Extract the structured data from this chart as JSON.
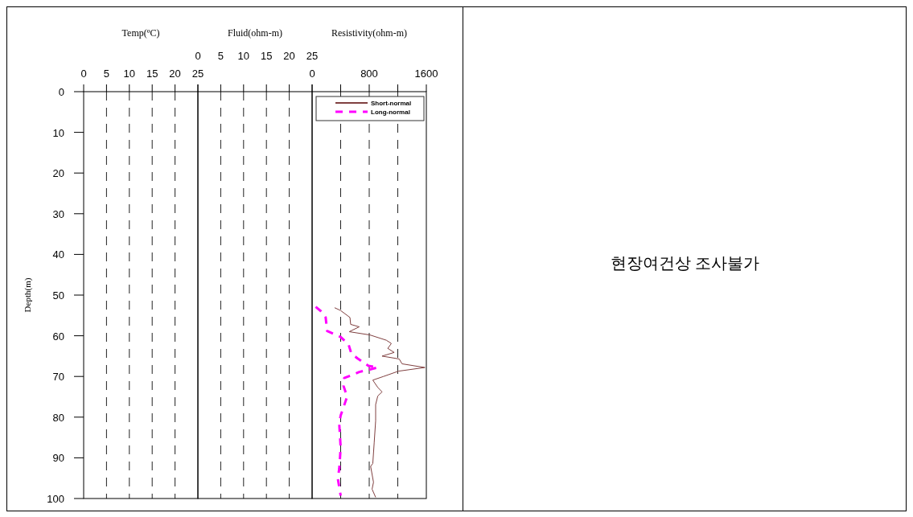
{
  "chart_data": [
    {
      "type": "line",
      "title": "Temp(ºC)",
      "ylabel": "Depth(m)",
      "xlim": [
        0,
        25
      ],
      "xticks": [
        0,
        5,
        10,
        15,
        20,
        25
      ],
      "ylim": [
        100,
        0
      ],
      "yticks": [
        0,
        10,
        20,
        30,
        40,
        50,
        60,
        70,
        80,
        90,
        100
      ],
      "grid": "x"
    },
    {
      "type": "line",
      "title": "Fluid(ohm-m)",
      "xlim": [
        0,
        25
      ],
      "xticks": [
        0,
        5,
        10,
        15,
        20,
        25
      ],
      "ylim": [
        100,
        0
      ],
      "yticks": [
        0,
        10,
        20,
        30,
        40,
        50,
        60,
        70,
        80,
        90,
        100
      ],
      "grid": "x",
      "tick_labels": "x"
    },
    {
      "type": "line",
      "title": "Resistivity(ohm-m)",
      "xlim": [
        0,
        1600
      ],
      "xticks": [
        0,
        {
          "value": 400,
          "label": null
        },
        800,
        {
          "value": 1200,
          "label": null
        },
        1600
      ],
      "ylim": [
        100,
        0
      ],
      "yticks": [
        0,
        10,
        20,
        30,
        40,
        50,
        60,
        70,
        80,
        90,
        100
      ],
      "grid": "x",
      "tick_labels": "x",
      "legend": "top right",
      "series": [
        {
          "name": "Short-normal",
          "color": "#804040",
          "line_style": "solid",
          "x": [
            315,
            400,
            530,
            540,
            660,
            520,
            810,
            1040,
            1110,
            1060,
            1150,
            980,
            1220,
            1260,
            1580,
            1210,
            1000,
            850,
            920,
            980,
            920,
            890,
            890,
            870,
            850,
            820,
            860,
            840,
            890
          ],
          "values": [
            53.1,
            53.8,
            55.5,
            57.2,
            57.8,
            59.0,
            59.8,
            61.1,
            61.9,
            63.1,
            64.1,
            65.0,
            65.7,
            66.9,
            67.8,
            68.7,
            70.0,
            70.9,
            72.7,
            73.8,
            74.8,
            76.9,
            80.9,
            86.2,
            91.4,
            92.1,
            96.0,
            97.7,
            99.7
          ]
        },
        {
          "name": "Long-normal",
          "color": "#ff00ff",
          "line_style": "dashed",
          "x": [
            50,
            120,
            190,
            210,
            400,
            510,
            550,
            640,
            790,
            920,
            660,
            450,
            440,
            490,
            400,
            380,
            400,
            380,
            360,
            400
          ],
          "values": [
            52.9,
            53.9,
            55.5,
            58.8,
            60.3,
            62.1,
            64.4,
            65.6,
            67.4,
            67.8,
            68.9,
            70.4,
            72.3,
            75.0,
            79.6,
            81.6,
            87.5,
            92.7,
            95.1,
            99.3
          ]
        }
      ]
    },
    {
      "type": "other",
      "annotations": [
        "현장여건상 조사불가"
      ]
    }
  ]
}
